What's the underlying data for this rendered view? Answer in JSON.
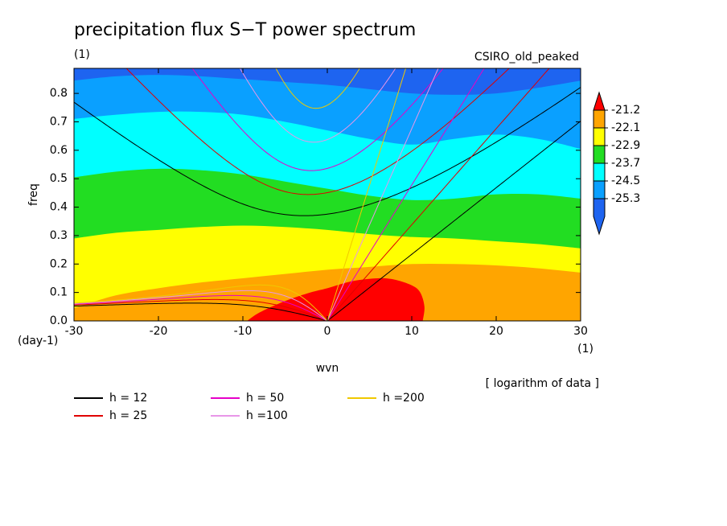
{
  "chart_data": {
    "type": "contour",
    "title": "precipitation flux S−T power spectrum",
    "data_units": "(1)",
    "model": "CSIRO_old_peaked",
    "x_label": "wvn",
    "y_label": "freq",
    "x_units": "(1)",
    "y_units": "(day-1)",
    "note": "[ logarithm of data ]",
    "xlim": [
      -30,
      30
    ],
    "ylim": [
      0,
      0.888
    ],
    "xticks": [
      -30,
      -20,
      -10,
      0,
      10,
      20,
      30
    ],
    "yticks": [
      {
        "value": 0,
        "label": "0.0"
      },
      0.1,
      0.2,
      0.3,
      0.4,
      0.5,
      0.6,
      0.7,
      0.8
    ],
    "levels": [
      -21.2,
      -22.1,
      -22.9,
      -23.7,
      -24.5,
      -25.3
    ],
    "colors": [
      "#ff0000",
      "#ffa500",
      "#ffff00",
      "#22dd22",
      "#00ffff",
      "#0aa0ff",
      "#1e64f0"
    ],
    "contours": [
      {
        "x": [
          -9.5,
          -8,
          -5,
          -2,
          0,
          3,
          6,
          8,
          10,
          11,
          11.5,
          11.3
        ],
        "y": [
          0,
          0.03,
          0.07,
          0.1,
          0.115,
          0.14,
          0.15,
          0.145,
          0.125,
          0.1,
          0.05,
          0
        ]
      },
      {
        "x": [
          -30,
          -25,
          -20,
          -15,
          -10,
          -5,
          0,
          5,
          10,
          15,
          20,
          25,
          30
        ],
        "y": [
          0.045,
          0.09,
          0.115,
          0.135,
          0.15,
          0.165,
          0.18,
          0.19,
          0.2,
          0.2,
          0.195,
          0.185,
          0.17
        ]
      },
      {
        "x": [
          -30,
          -25,
          -20,
          -15,
          -10,
          -5,
          0,
          5,
          10,
          15,
          20,
          25,
          30
        ],
        "y": [
          0.29,
          0.31,
          0.32,
          0.33,
          0.335,
          0.33,
          0.32,
          0.305,
          0.295,
          0.29,
          0.28,
          0.27,
          0.255
        ]
      },
      {
        "x": [
          -30,
          -25,
          -20,
          -15,
          -10,
          -5,
          0,
          5,
          10,
          15,
          20,
          25,
          30
        ],
        "y": [
          0.505,
          0.525,
          0.535,
          0.53,
          0.515,
          0.49,
          0.465,
          0.44,
          0.425,
          0.43,
          0.445,
          0.445,
          0.43
        ]
      },
      {
        "x": [
          -30,
          -25,
          -20,
          -15,
          -10,
          -5,
          0,
          5,
          10,
          15,
          20,
          25,
          30
        ],
        "y": [
          0.71,
          0.725,
          0.735,
          0.735,
          0.725,
          0.7,
          0.67,
          0.64,
          0.62,
          0.64,
          0.655,
          0.64,
          0.605
        ]
      },
      {
        "x": [
          -30,
          -25,
          -20,
          -15,
          -10,
          -5,
          0,
          5,
          10,
          15,
          20,
          25,
          30
        ],
        "y": [
          0.845,
          0.86,
          0.865,
          0.86,
          0.85,
          0.84,
          0.83,
          0.815,
          0.8,
          0.795,
          0.8,
          0.82,
          0.845
        ]
      }
    ],
    "series": [
      {
        "name": "h = 12",
        "h": 12,
        "color": "#000000"
      },
      {
        "name": "h = 25",
        "h": 25,
        "color": "#e00000"
      },
      {
        "name": "h = 50",
        "h": 50,
        "color": "#e600c8"
      },
      {
        "name": "h =100",
        "h": 100,
        "color": "#e896e8"
      },
      {
        "name": "h =200",
        "h": 200,
        "color": "#f0c800"
      }
    ]
  }
}
